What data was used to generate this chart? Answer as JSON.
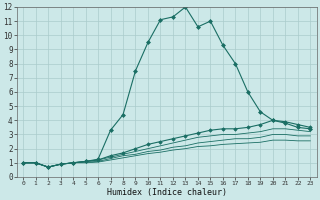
{
  "xlabel": "Humidex (Indice chaleur)",
  "bg_color": "#cce8e8",
  "line_color": "#1a6e64",
  "grid_color": "#aacccc",
  "xlim": [
    -0.5,
    23.5
  ],
  "ylim": [
    0,
    12
  ],
  "xticks": [
    0,
    1,
    2,
    3,
    4,
    5,
    6,
    7,
    8,
    9,
    10,
    11,
    12,
    13,
    14,
    15,
    16,
    17,
    18,
    19,
    20,
    21,
    22,
    23
  ],
  "yticks": [
    0,
    1,
    2,
    3,
    4,
    5,
    6,
    7,
    8,
    9,
    10,
    11,
    12
  ],
  "lines": [
    {
      "x": [
        0,
        1,
        2,
        3,
        4,
        5,
        6,
        7,
        8,
        9,
        10,
        11,
        12,
        13,
        14,
        15,
        16,
        17,
        18,
        19,
        20,
        21,
        22,
        23
      ],
      "y": [
        1,
        1,
        0.7,
        0.9,
        1.0,
        1.1,
        1.25,
        3.3,
        4.4,
        7.5,
        9.5,
        11.1,
        11.3,
        12.0,
        10.6,
        11.0,
        9.3,
        8.0,
        6.0,
        4.6,
        4.0,
        3.8,
        3.5,
        3.4
      ],
      "marker": "D",
      "markersize": 2.0,
      "linewidth": 0.8,
      "has_marker": true
    },
    {
      "x": [
        0,
        1,
        2,
        3,
        4,
        5,
        6,
        7,
        8,
        9,
        10,
        11,
        12,
        13,
        14,
        15,
        16,
        17,
        18,
        19,
        20,
        21,
        22,
        23
      ],
      "y": [
        1,
        1,
        0.7,
        0.9,
        1.0,
        1.1,
        1.2,
        1.5,
        1.7,
        2.0,
        2.3,
        2.5,
        2.7,
        2.9,
        3.1,
        3.3,
        3.4,
        3.4,
        3.5,
        3.7,
        4.0,
        3.9,
        3.7,
        3.5
      ],
      "marker": "D",
      "markersize": 1.8,
      "linewidth": 0.8,
      "has_marker": true
    },
    {
      "x": [
        0,
        1,
        2,
        3,
        4,
        5,
        6,
        7,
        8,
        9,
        10,
        11,
        12,
        13,
        14,
        15,
        16,
        17,
        18,
        19,
        20,
        21,
        22,
        23
      ],
      "y": [
        1,
        1,
        0.7,
        0.9,
        1.0,
        1.1,
        1.2,
        1.4,
        1.6,
        1.8,
        2.0,
        2.2,
        2.4,
        2.6,
        2.8,
        2.9,
        3.0,
        3.0,
        3.1,
        3.2,
        3.4,
        3.4,
        3.3,
        3.2
      ],
      "marker": null,
      "markersize": 0,
      "linewidth": 0.6,
      "has_marker": false
    },
    {
      "x": [
        0,
        1,
        2,
        3,
        4,
        5,
        6,
        7,
        8,
        9,
        10,
        11,
        12,
        13,
        14,
        15,
        16,
        17,
        18,
        19,
        20,
        21,
        22,
        23
      ],
      "y": [
        1,
        1,
        0.7,
        0.9,
        1.0,
        1.05,
        1.1,
        1.3,
        1.5,
        1.6,
        1.8,
        1.9,
        2.1,
        2.2,
        2.4,
        2.5,
        2.6,
        2.7,
        2.7,
        2.8,
        3.0,
        3.0,
        2.9,
        2.9
      ],
      "marker": null,
      "markersize": 0,
      "linewidth": 0.6,
      "has_marker": false
    },
    {
      "x": [
        0,
        1,
        2,
        3,
        4,
        5,
        6,
        7,
        8,
        9,
        10,
        11,
        12,
        13,
        14,
        15,
        16,
        17,
        18,
        19,
        20,
        21,
        22,
        23
      ],
      "y": [
        1,
        1,
        0.7,
        0.9,
        1.0,
        1.0,
        1.05,
        1.2,
        1.35,
        1.5,
        1.65,
        1.75,
        1.9,
        2.0,
        2.15,
        2.2,
        2.3,
        2.35,
        2.4,
        2.45,
        2.6,
        2.6,
        2.55,
        2.55
      ],
      "marker": null,
      "markersize": 0,
      "linewidth": 0.6,
      "has_marker": false
    }
  ]
}
